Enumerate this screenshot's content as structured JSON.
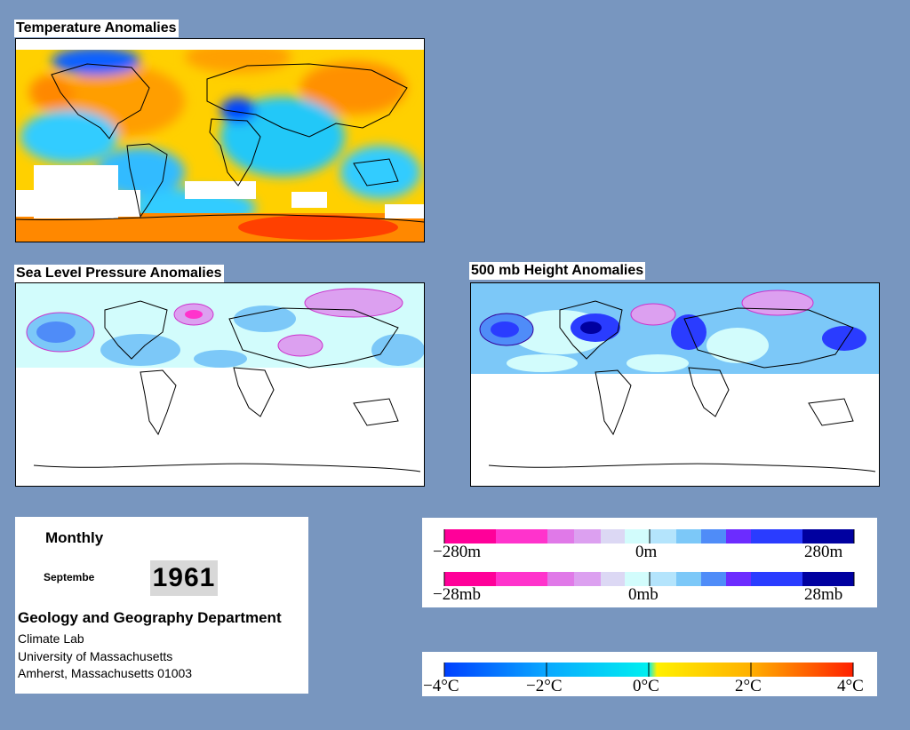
{
  "maps": {
    "temperature": {
      "title": "Temperature Anomalies"
    },
    "pressure": {
      "title": "Sea Level Pressure Anomalies"
    },
    "height": {
      "title": "500 mb Height Anomalies"
    }
  },
  "info": {
    "period": "Monthly",
    "month": "Septembe",
    "year": "1961",
    "department": "Geology and Geography Department",
    "lab": "Climate Lab",
    "university": "University of Massachusetts",
    "address": "Amherst, Massachusetts 01003"
  },
  "legend_height": {
    "left": "−280m",
    "center": "0m",
    "right": "280m"
  },
  "legend_pressure": {
    "left": "−28mb",
    "center": "0mb",
    "right": "28mb"
  },
  "legend_temperature": {
    "labels": [
      "−4°C",
      "−2°C",
      "0°C",
      "2°C",
      "4°C"
    ]
  },
  "colors": {
    "background": "#7896bf",
    "pink_strong": "#ff0099",
    "pink_mid": "#ff33cc",
    "lavender": "#dca0f0",
    "pale_cyan": "#d2fcfc",
    "light_blue": "#7cc8f8",
    "blue": "#2a3cff",
    "navy": "#0000a0",
    "temp_cold": "#0040ff",
    "temp_zero": "#00f0f0",
    "temp_warm": "#ffd800",
    "temp_hot": "#ff2000"
  }
}
